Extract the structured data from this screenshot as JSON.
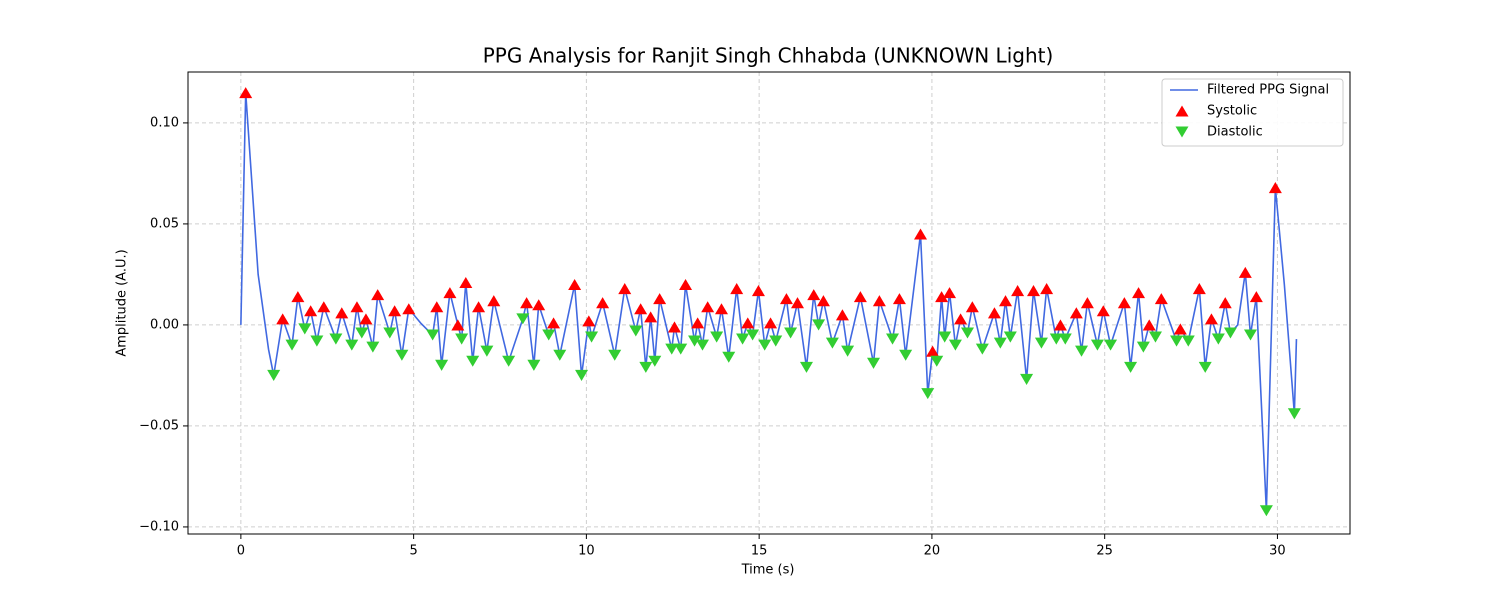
{
  "chart_data": {
    "type": "line",
    "title": "PPG Analysis for Ranjit Singh Chhabda (UNKNOWN Light)",
    "xlabel": "Time (s)",
    "ylabel": "Amplitude (A.U.)",
    "xlim": [
      -1.53,
      32.1
    ],
    "ylim": [
      -0.1035,
      0.1252
    ],
    "xticks": [
      0,
      5,
      10,
      15,
      20,
      25,
      30
    ],
    "yticks": [
      {
        "value": -0.1,
        "label": "−0.10"
      },
      {
        "value": -0.05,
        "label": "−0.05"
      },
      {
        "value": 0,
        "label": "0.00"
      },
      {
        "value": 0.05,
        "label": "0.05"
      },
      {
        "value": 0.1,
        "label": "0.10"
      }
    ],
    "grid": true,
    "legend": "upper right",
    "series": [
      {
        "name": "Filtered PPG Signal",
        "type": "line",
        "color": "#4169e1",
        "x": [
          0,
          0.14,
          0.5,
          0.8,
          0.95,
          1.21,
          1.48,
          1.65,
          1.85,
          2.02,
          2.2,
          2.4,
          2.75,
          2.92,
          3.21,
          3.36,
          3.5,
          3.62,
          3.82,
          3.96,
          4.31,
          4.45,
          4.66,
          4.86,
          5.2,
          5.55,
          5.67,
          5.81,
          6.05,
          6.28,
          6.39,
          6.51,
          6.71,
          6.88,
          7.12,
          7.32,
          7.75,
          8.16,
          8.27,
          8.48,
          8.62,
          8.91,
          9.05,
          9.23,
          9.66,
          9.86,
          10.07,
          10.15,
          10.47,
          10.82,
          11.11,
          11.43,
          11.57,
          11.72,
          11.86,
          11.98,
          12.12,
          12.47,
          12.55,
          12.73,
          12.87,
          13.13,
          13.22,
          13.36,
          13.51,
          13.77,
          13.91,
          14.12,
          14.35,
          14.52,
          14.67,
          14.81,
          14.98,
          15.16,
          15.33,
          15.48,
          15.79,
          15.91,
          16.11,
          16.37,
          16.58,
          16.72,
          16.86,
          17.12,
          17.41,
          17.56,
          17.93,
          18.31,
          18.48,
          18.86,
          19.06,
          19.24,
          19.67,
          19.88,
          20.02,
          20.14,
          20.28,
          20.37,
          20.51,
          20.68,
          20.83,
          21.03,
          21.17,
          21.46,
          21.81,
          21.98,
          22.13,
          22.27,
          22.48,
          22.74,
          22.94,
          23.17,
          23.32,
          23.6,
          23.72,
          23.86,
          24.18,
          24.33,
          24.5,
          24.79,
          24.96,
          25.17,
          25.57,
          25.75,
          25.98,
          26.12,
          26.29,
          26.47,
          26.64,
          27.08,
          27.19,
          27.42,
          27.74,
          27.91,
          28.09,
          28.29,
          28.49,
          28.64,
          28.85,
          29.07,
          29.22,
          29.39,
          29.68,
          29.94,
          30.2,
          30.49,
          30.55
        ],
        "values": [
          0,
          0.115,
          0.025,
          -0.012,
          -0.025,
          0.003,
          -0.01,
          0.014,
          -0.002,
          0.007,
          -0.008,
          0.009,
          -0.007,
          0.006,
          -0.01,
          0.009,
          -0.004,
          0.003,
          -0.011,
          0.015,
          -0.004,
          0.007,
          -0.015,
          0.008,
          0.001,
          -0.005,
          0.009,
          -0.02,
          0.016,
          0,
          -0.007,
          0.021,
          -0.018,
          0.009,
          -0.013,
          0.012,
          -0.018,
          0.003,
          0.011,
          -0.02,
          0.01,
          -0.005,
          0.001,
          -0.015,
          0.02,
          -0.025,
          0.002,
          -0.006,
          0.011,
          -0.015,
          0.018,
          -0.003,
          0.008,
          -0.021,
          0.004,
          -0.018,
          0.013,
          -0.012,
          -0.001,
          -0.012,
          0.02,
          -0.008,
          0.001,
          -0.01,
          0.009,
          -0.006,
          0.008,
          -0.016,
          0.018,
          -0.007,
          0.001,
          -0.005,
          0.017,
          -0.01,
          0.001,
          -0.008,
          0.013,
          -0.004,
          0.011,
          -0.021,
          0.015,
          0,
          0.012,
          -0.009,
          0.005,
          -0.013,
          0.014,
          -0.019,
          0.012,
          -0.007,
          0.013,
          -0.015,
          0.045,
          -0.034,
          -0.013,
          -0.018,
          0.014,
          -0.006,
          0.016,
          -0.01,
          0.003,
          -0.004,
          0.009,
          -0.012,
          0.006,
          -0.009,
          0.012,
          -0.006,
          0.017,
          -0.027,
          0.017,
          -0.009,
          0.018,
          -0.007,
          0,
          -0.007,
          0.006,
          -0.013,
          0.011,
          -0.01,
          0.007,
          -0.01,
          0.011,
          -0.021,
          0.016,
          -0.011,
          0,
          -0.006,
          0.013,
          -0.008,
          -0.002,
          -0.008,
          0.018,
          -0.021,
          0.003,
          -0.007,
          0.011,
          -0.004,
          0,
          0.026,
          -0.005,
          0.014,
          -0.092,
          0.068,
          0.02,
          -0.044,
          -0.007
        ]
      },
      {
        "name": "Systolic",
        "type": "scatter",
        "marker": "^",
        "color": "#ff0000",
        "x": [
          0.14,
          1.21,
          1.65,
          2.02,
          2.4,
          2.92,
          3.36,
          3.62,
          3.96,
          4.45,
          4.86,
          5.67,
          6.05,
          6.28,
          6.51,
          6.88,
          7.32,
          8.27,
          8.62,
          9.05,
          9.66,
          10.07,
          10.47,
          11.11,
          11.57,
          11.86,
          12.12,
          12.55,
          12.87,
          13.22,
          13.51,
          13.91,
          14.35,
          14.67,
          14.98,
          15.33,
          15.79,
          16.11,
          16.58,
          16.86,
          17.41,
          17.93,
          18.48,
          19.06,
          19.67,
          20.02,
          20.28,
          20.51,
          20.83,
          21.17,
          21.81,
          22.13,
          22.48,
          22.94,
          23.32,
          23.72,
          24.18,
          24.5,
          24.96,
          25.57,
          25.98,
          26.29,
          26.64,
          27.19,
          27.74,
          28.09,
          28.49,
          29.07,
          29.39,
          29.94
        ],
        "values": [
          0.115,
          0.003,
          0.014,
          0.007,
          0.009,
          0.006,
          0.009,
          0.003,
          0.015,
          0.007,
          0.008,
          0.009,
          0.016,
          0,
          0.021,
          0.009,
          0.012,
          0.011,
          0.01,
          0.001,
          0.02,
          0.002,
          0.011,
          0.018,
          0.008,
          0.004,
          0.013,
          -0.001,
          0.02,
          0.001,
          0.009,
          0.008,
          0.018,
          0.001,
          0.017,
          0.001,
          0.013,
          0.011,
          0.015,
          0.012,
          0.005,
          0.014,
          0.012,
          0.013,
          0.045,
          -0.013,
          0.014,
          0.016,
          0.003,
          0.009,
          0.006,
          0.012,
          0.017,
          0.017,
          0.018,
          0,
          0.006,
          0.011,
          0.007,
          0.011,
          0.016,
          0,
          0.013,
          -0.002,
          0.018,
          0.003,
          0.011,
          0.026,
          0.014,
          0.068
        ]
      },
      {
        "name": "Diastolic",
        "type": "scatter",
        "marker": "v",
        "color": "#32cd32",
        "x": [
          0.95,
          1.48,
          1.85,
          2.2,
          2.75,
          3.21,
          3.5,
          3.82,
          4.31,
          4.66,
          5.55,
          5.81,
          6.39,
          6.71,
          7.12,
          7.75,
          8.16,
          8.48,
          8.91,
          9.23,
          9.86,
          10.15,
          10.82,
          11.43,
          11.72,
          11.98,
          12.47,
          12.73,
          13.13,
          13.36,
          13.77,
          14.12,
          14.52,
          14.81,
          15.16,
          15.48,
          15.91,
          16.37,
          16.72,
          17.12,
          17.56,
          18.31,
          18.86,
          19.24,
          19.88,
          20.14,
          20.37,
          20.68,
          21.03,
          21.46,
          21.98,
          22.27,
          22.74,
          23.17,
          23.6,
          23.86,
          24.33,
          24.79,
          25.17,
          25.75,
          26.12,
          26.47,
          27.08,
          27.42,
          27.91,
          28.29,
          28.64,
          29.22,
          29.68,
          30.49
        ],
        "values": [
          -0.025,
          -0.01,
          -0.002,
          -0.008,
          -0.007,
          -0.01,
          -0.004,
          -0.011,
          -0.004,
          -0.015,
          -0.005,
          -0.02,
          -0.007,
          -0.018,
          -0.013,
          -0.018,
          0.003,
          -0.02,
          -0.005,
          -0.015,
          -0.025,
          -0.006,
          -0.015,
          -0.003,
          -0.021,
          -0.018,
          -0.012,
          -0.012,
          -0.008,
          -0.01,
          -0.006,
          -0.016,
          -0.007,
          -0.005,
          -0.01,
          -0.008,
          -0.004,
          -0.021,
          0,
          -0.009,
          -0.013,
          -0.019,
          -0.007,
          -0.015,
          -0.034,
          -0.018,
          -0.006,
          -0.01,
          -0.004,
          -0.012,
          -0.009,
          -0.006,
          -0.027,
          -0.009,
          -0.007,
          -0.007,
          -0.013,
          -0.01,
          -0.01,
          -0.021,
          -0.011,
          -0.006,
          -0.008,
          -0.008,
          -0.021,
          -0.007,
          -0.004,
          -0.005,
          -0.092,
          -0.044
        ]
      }
    ]
  }
}
